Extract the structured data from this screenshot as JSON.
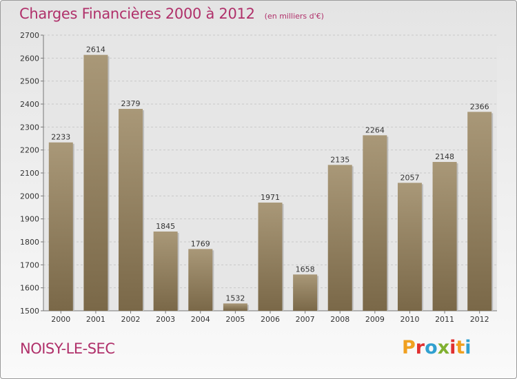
{
  "header": {
    "title": "Charges Financières 2000 à 2012",
    "unit": "(en milliers d'€)"
  },
  "footer": {
    "commune": "NOISY-LE-SEC",
    "logo_letters": [
      "P",
      "r",
      "o",
      "x",
      "i",
      "t",
      "i"
    ],
    "logo_colors": [
      "#f0a020",
      "#e03030",
      "#30a0d0",
      "#80b030",
      "#e03030",
      "#f0a020",
      "#30a0d0"
    ]
  },
  "chart_data": {
    "type": "bar",
    "categories": [
      "2000",
      "2001",
      "2002",
      "2003",
      "2004",
      "2005",
      "2006",
      "2007",
      "2008",
      "2009",
      "2010",
      "2011",
      "2012"
    ],
    "values": [
      2233,
      2614,
      2379,
      1845,
      1769,
      1532,
      1971,
      1658,
      2135,
      2264,
      2057,
      2148,
      2366
    ],
    "ylim": [
      1500,
      2700
    ],
    "yticks": [
      1500,
      1600,
      1700,
      1800,
      1900,
      2000,
      2100,
      2200,
      2300,
      2400,
      2500,
      2600,
      2700
    ],
    "grid": true,
    "bar_color_light": "#a99878",
    "bar_color_dark": "#7a6848",
    "title_color": "#b0306a"
  }
}
